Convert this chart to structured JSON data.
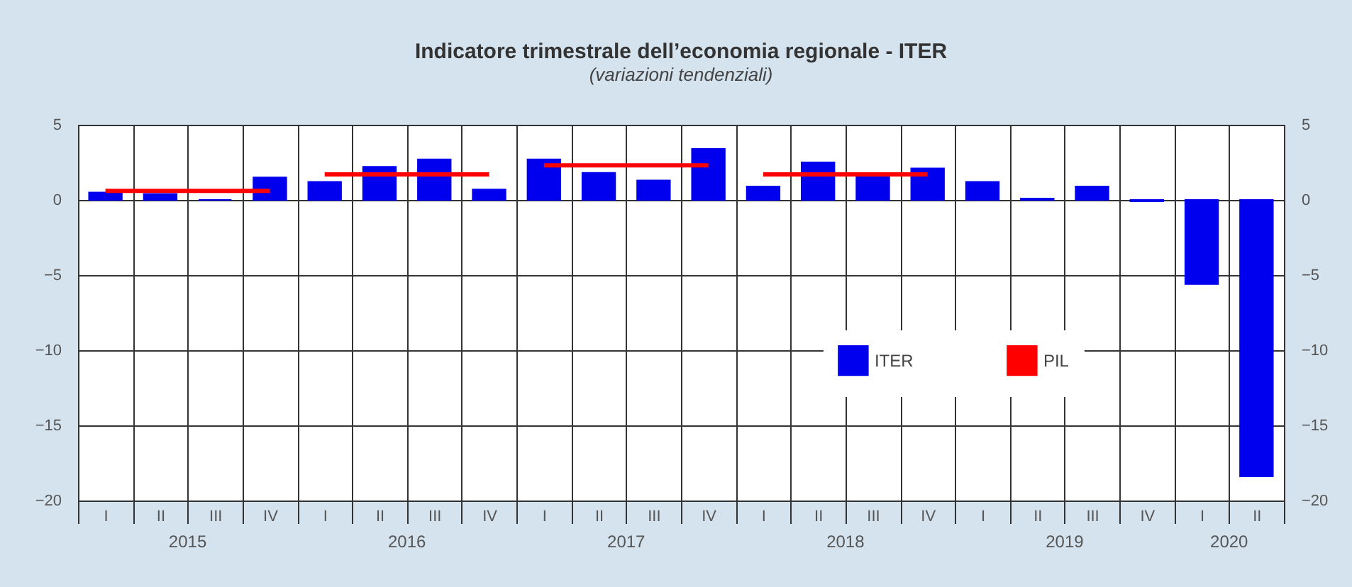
{
  "chart_data": {
    "type": "bar",
    "title": "Indicatore trimestrale dell’economia regionale - ITER",
    "subtitle": "(variazioni tendenziali)",
    "categories": [
      "I",
      "II",
      "III",
      "IV",
      "I",
      "II",
      "III",
      "IV",
      "I",
      "II",
      "III",
      "IV",
      "I",
      "II",
      "III",
      "IV",
      "I",
      "II",
      "III",
      "IV",
      "I",
      "II"
    ],
    "series": [
      {
        "name": "ITER",
        "color": "#0000ee",
        "values": [
          0.5,
          0.4,
          0,
          1.5,
          1.2,
          2.2,
          2.7,
          0.7,
          2.7,
          1.8,
          1.3,
          3.4,
          0.9,
          2.5,
          1.6,
          2.1,
          1.2,
          0.1,
          0.9,
          -0.1,
          -5.6,
          -18.4
        ]
      },
      {
        "name": "PIL",
        "type": "line",
        "color": "#ff0000",
        "values": [
          0.6,
          0.6,
          0.6,
          0.6,
          null,
          null,
          null,
          null,
          null,
          null,
          null,
          null,
          null,
          null,
          null,
          null,
          null,
          null,
          null,
          null,
          null,
          null
        ]
      },
      {
        "type": "line",
        "color": "#ff0000",
        "values": [
          null,
          null,
          null,
          null,
          1.7,
          1.7,
          1.7,
          1.7,
          null,
          null,
          null,
          null,
          null,
          null,
          null,
          null,
          null,
          null,
          null,
          null,
          null,
          null
        ]
      },
      {
        "type": "line",
        "color": "#ff0000",
        "values": [
          null,
          null,
          null,
          null,
          null,
          null,
          null,
          null,
          2.3,
          2.3,
          2.3,
          2.3,
          null,
          null,
          null,
          null,
          null,
          null,
          null,
          null,
          null,
          null
        ]
      },
      {
        "type": "line",
        "color": "#ff0000",
        "values": [
          null,
          null,
          null,
          null,
          null,
          null,
          null,
          null,
          null,
          null,
          null,
          null,
          1.7,
          1.7,
          1.7,
          1.7,
          null,
          null,
          null,
          null,
          null,
          null
        ]
      }
    ],
    "annotations": [
      "2015",
      "2016",
      "2017",
      "2018",
      "2019",
      "2020"
    ],
    "ylim": [
      -20,
      5
    ],
    "yticks": [
      -20,
      -15,
      -10,
      -5,
      0,
      5
    ],
    "y2lim": [
      -20,
      5
    ],
    "y2ticks": [
      -20,
      -15,
      -10,
      -5,
      0,
      5
    ],
    "grid": true,
    "legend": "right"
  }
}
